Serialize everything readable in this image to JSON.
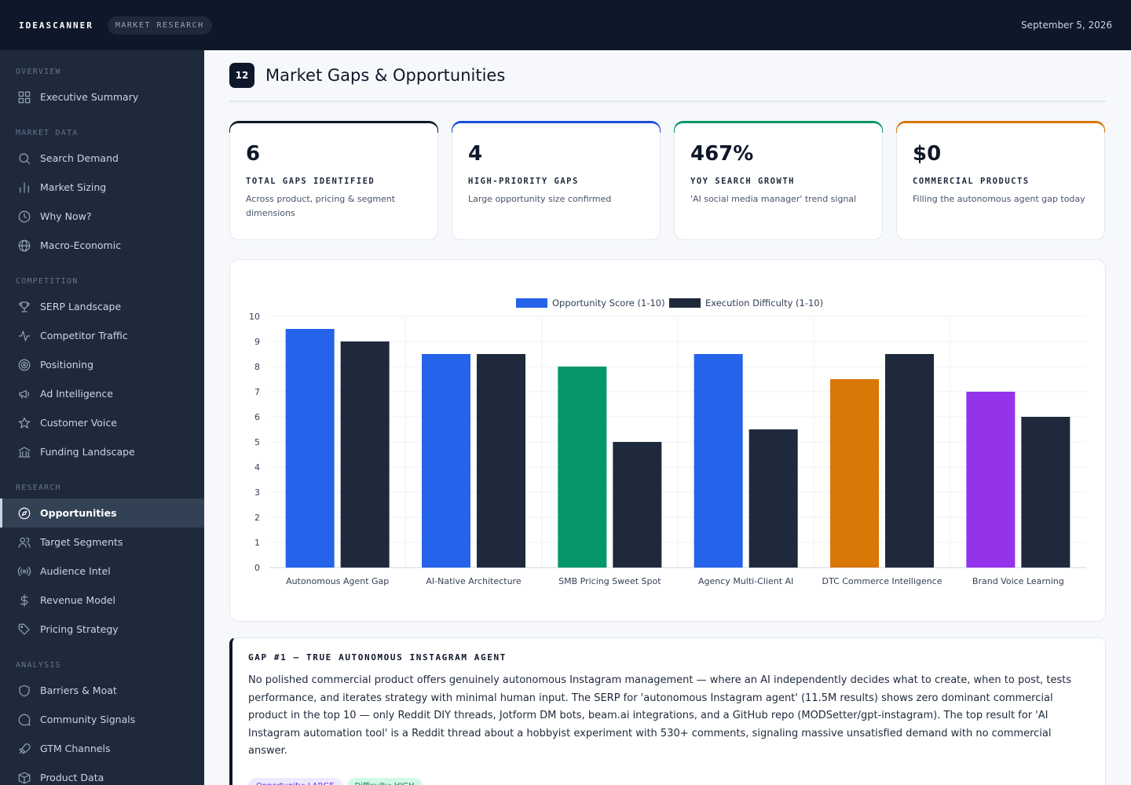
{
  "header": {
    "brand": "IDEASCANNER",
    "pill": "MARKET RESEARCH",
    "date": "September 5, 2026"
  },
  "sidebar": {
    "sections": [
      {
        "label": "OVERVIEW",
        "items": [
          {
            "label": "Executive Summary",
            "icon": "grid-icon"
          }
        ]
      },
      {
        "label": "MARKET DATA",
        "items": [
          {
            "label": "Search Demand",
            "icon": "search-icon"
          },
          {
            "label": "Market Sizing",
            "icon": "bar-chart-icon"
          },
          {
            "label": "Why Now?",
            "icon": "clock-icon"
          },
          {
            "label": "Macro-Economic",
            "icon": "globe-icon"
          }
        ]
      },
      {
        "label": "COMPETITION",
        "items": [
          {
            "label": "SERP Landscape",
            "icon": "trophy-icon"
          },
          {
            "label": "Competitor Traffic",
            "icon": "activity-icon"
          },
          {
            "label": "Positioning",
            "icon": "target-icon"
          },
          {
            "label": "Ad Intelligence",
            "icon": "megaphone-icon"
          },
          {
            "label": "Customer Voice",
            "icon": "star-icon"
          },
          {
            "label": "Funding Landscape",
            "icon": "bank-icon"
          }
        ]
      },
      {
        "label": "RESEARCH",
        "items": [
          {
            "label": "Opportunities",
            "icon": "compass-icon",
            "active": true
          },
          {
            "label": "Target Segments",
            "icon": "users-icon"
          },
          {
            "label": "Audience Intel",
            "icon": "radio-icon"
          },
          {
            "label": "Revenue Model",
            "icon": "dollar-icon"
          },
          {
            "label": "Pricing Strategy",
            "icon": "tag-icon"
          }
        ]
      },
      {
        "label": "ANALYSIS",
        "items": [
          {
            "label": "Barriers & Moat",
            "icon": "shield-icon"
          },
          {
            "label": "Community Signals",
            "icon": "message-icon"
          },
          {
            "label": "GTM Channels",
            "icon": "rocket-icon"
          },
          {
            "label": "Product Data",
            "icon": "box-icon"
          }
        ]
      }
    ]
  },
  "main": {
    "section_number": "12",
    "title": "Market Gaps & Opportunities",
    "cards": [
      {
        "value": "6",
        "label": "TOTAL GAPS IDENTIFIED",
        "sub": "Across product, pricing & segment dimensions",
        "accent": "#0f172a"
      },
      {
        "value": "4",
        "label": "HIGH-PRIORITY GAPS",
        "sub": "Large opportunity size confirmed",
        "accent": "#1d4ed8"
      },
      {
        "value": "467%",
        "label": "YOY SEARCH GROWTH",
        "sub": "'AI social media manager' trend signal",
        "accent": "#059669"
      },
      {
        "value": "$0",
        "label": "COMMERCIAL PRODUCTS",
        "sub": "Filling the autonomous agent gap today",
        "accent": "#d97706"
      }
    ],
    "gap": {
      "title": "GAP #1 — TRUE AUTONOMOUS INSTAGRAM AGENT",
      "body": "No polished commercial product offers genuinely autonomous Instagram management — where an AI independently decides what to create, when to post, tests performance, and iterates strategy with minimal human input. The SERP for 'autonomous Instagram agent' (11.5M results) shows zero dominant commercial product in the top 10 — only Reddit DIY threads, Jotform DM bots, beam.ai integrations, and a GitHub repo (MODSetter/gpt-instagram). The top result for 'AI Instagram automation tool' is a Reddit thread about a hobbyist experiment with 530+ comments, signaling massive unsatisfied demand with no commercial answer.",
      "tags": [
        "Opportunity: LARGE",
        "Difficulty: HIGH"
      ]
    }
  },
  "chart_data": {
    "type": "bar",
    "categories": [
      "Autonomous Agent Gap",
      "AI-Native Architecture",
      "SMB Pricing Sweet Spot",
      "Agency Multi-Client AI",
      "DTC Commerce Intelligence",
      "Brand Voice Learning"
    ],
    "series": [
      {
        "name": "Opportunity Score (1-10)",
        "values": [
          9.5,
          8.5,
          8,
          8.5,
          7.5,
          7
        ],
        "colors": [
          "#2563eb",
          "#2563eb",
          "#059669",
          "#2563eb",
          "#d97706",
          "#9333ea"
        ],
        "legend_color": "#2563eb"
      },
      {
        "name": "Execution Difficulty (1-10)",
        "values": [
          9,
          8.5,
          5,
          5.5,
          8.5,
          6
        ],
        "colors": [
          "#1e293b",
          "#1e293b",
          "#1e293b",
          "#1e293b",
          "#1e293b",
          "#1e293b"
        ],
        "legend_color": "#1e293b"
      }
    ],
    "yticks": [
      "0",
      "1",
      "2",
      "3",
      "4",
      "5",
      "6",
      "7",
      "8",
      "9",
      "10"
    ],
    "ylim": [
      0,
      10
    ],
    "grid": true,
    "legend": "top-center"
  }
}
